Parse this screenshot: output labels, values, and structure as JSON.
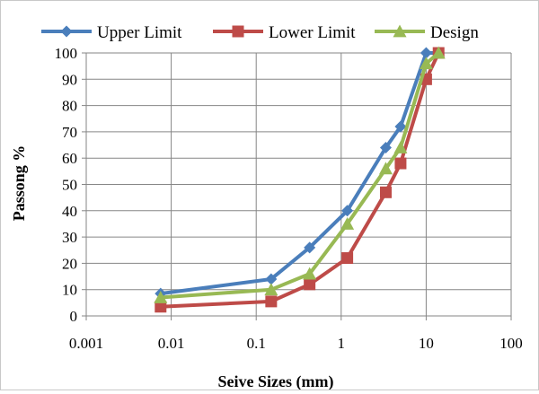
{
  "chart_data": {
    "type": "line",
    "title": "",
    "xlabel": "Seive Sizes (mm)",
    "ylabel": "Passong %",
    "x_scale": "log",
    "xlim": [
      0.001,
      100
    ],
    "ylim": [
      0,
      100
    ],
    "x_ticks": [
      "0.001",
      "0.01",
      "0.1",
      "1",
      "10",
      "100"
    ],
    "y_ticks": [
      "0",
      "10",
      "20",
      "30",
      "40",
      "50",
      "60",
      "70",
      "80",
      "90",
      "100"
    ],
    "grid": true,
    "legend_position": "top",
    "series": [
      {
        "name": "Upper Limit",
        "color": "#4a7ebb",
        "marker": "diamond",
        "x": [
          0.0075,
          0.15,
          0.425,
          1.18,
          3.35,
          5.0,
          10.0,
          14.0
        ],
        "y": [
          8.5,
          14,
          26,
          40,
          64,
          72,
          100,
          100
        ]
      },
      {
        "name": "Lower Limit",
        "color": "#be4b48",
        "marker": "square",
        "x": [
          0.0075,
          0.15,
          0.425,
          1.18,
          3.35,
          5.0,
          10.0,
          14.0
        ],
        "y": [
          3.5,
          5.5,
          12,
          22,
          47,
          58,
          90,
          100
        ]
      },
      {
        "name": "Design",
        "color": "#98b954",
        "marker": "triangle",
        "x": [
          0.0075,
          0.15,
          0.425,
          1.18,
          3.35,
          5.0,
          10.0,
          14.0
        ],
        "y": [
          7,
          10,
          16,
          35,
          56,
          64,
          96,
          100
        ]
      }
    ]
  }
}
